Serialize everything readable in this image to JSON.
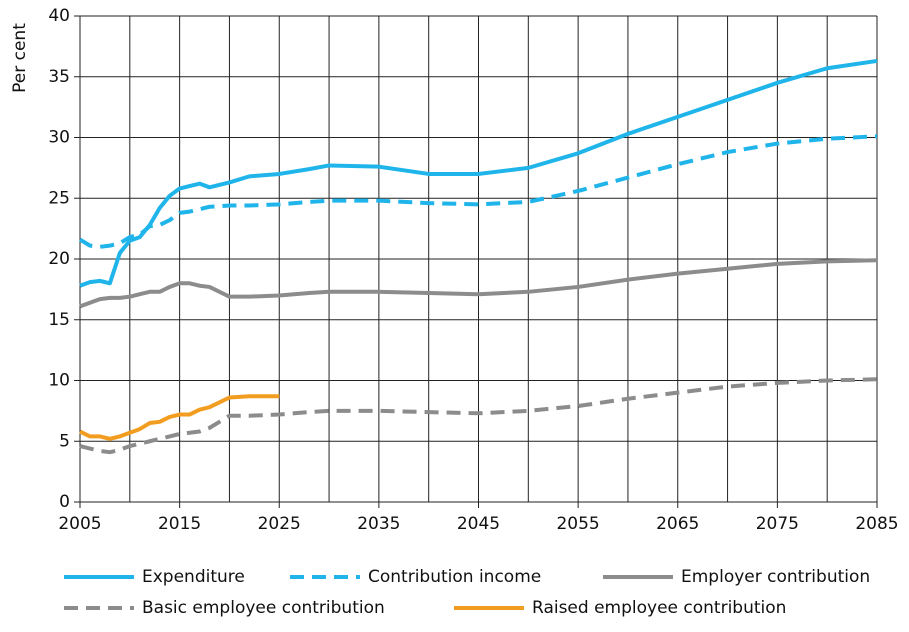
{
  "chart_data": {
    "type": "line",
    "y_label": "Per cent",
    "x": [
      2005,
      2006,
      2007,
      2008,
      2009,
      2010,
      2011,
      2012,
      2013,
      2014,
      2015,
      2016,
      2017,
      2018,
      2020,
      2022,
      2025,
      2028,
      2030,
      2035,
      2040,
      2045,
      2050,
      2055,
      2060,
      2065,
      2070,
      2075,
      2080,
      2085
    ],
    "series": [
      {
        "name": "Expenditure",
        "color": "#1fb5ea",
        "dashed": false,
        "values": [
          17.8,
          18.1,
          18.2,
          18.0,
          20.5,
          21.5,
          21.8,
          22.8,
          24.2,
          25.2,
          25.8,
          26.0,
          26.2,
          25.9,
          26.3,
          26.8,
          27.0,
          27.4,
          27.7,
          27.6,
          27.0,
          27.0,
          27.5,
          28.7,
          30.3,
          31.7,
          33.1,
          34.5,
          35.7,
          36.3
        ]
      },
      {
        "name": "Contribution income",
        "color": "#1fb5ea",
        "dashed": true,
        "values": [
          21.6,
          21.1,
          21.0,
          21.1,
          21.3,
          21.8,
          22.0,
          22.7,
          22.8,
          23.2,
          23.8,
          23.9,
          24.1,
          24.3,
          24.4,
          24.4,
          24.5,
          24.7,
          24.8,
          24.8,
          24.6,
          24.5,
          24.7,
          25.6,
          26.7,
          27.8,
          28.8,
          29.5,
          29.9,
          30.1
        ]
      },
      {
        "name": "Employer contribution",
        "color": "#8c8c8c",
        "dashed": false,
        "values": [
          16.1,
          16.4,
          16.7,
          16.8,
          16.8,
          16.9,
          17.1,
          17.3,
          17.3,
          17.7,
          18.0,
          18.0,
          17.8,
          17.7,
          16.9,
          16.9,
          17.0,
          17.2,
          17.3,
          17.3,
          17.2,
          17.1,
          17.3,
          17.7,
          18.3,
          18.8,
          19.2,
          19.6,
          19.8,
          19.9
        ]
      },
      {
        "name": "Basic employee contribution",
        "color": "#8c8c8c",
        "dashed": true,
        "values": [
          4.6,
          4.4,
          4.2,
          4.1,
          4.3,
          4.6,
          4.8,
          5.0,
          5.2,
          5.4,
          5.6,
          5.7,
          5.8,
          6.1,
          7.1,
          7.1,
          7.2,
          7.4,
          7.5,
          7.5,
          7.4,
          7.3,
          7.5,
          7.9,
          8.5,
          9.0,
          9.5,
          9.8,
          10.0,
          10.1
        ]
      },
      {
        "name": "Raised employee contribution",
        "color": "#f29d1f",
        "dashed": false,
        "values": [
          5.8,
          5.4,
          5.4,
          5.2,
          5.4,
          5.7,
          6.0,
          6.5,
          6.6,
          7.0,
          7.2,
          7.2,
          7.6,
          7.8,
          8.6,
          8.7,
          8.7,
          null,
          null,
          null,
          null,
          null,
          null,
          null,
          null,
          null,
          null,
          null,
          null,
          null
        ]
      }
    ],
    "xlim": [
      2005,
      2085
    ],
    "xticks": [
      2005,
      2015,
      2025,
      2035,
      2045,
      2055,
      2065,
      2075,
      2085
    ],
    "xminorticks": [
      2010,
      2020,
      2030,
      2040,
      2050,
      2060,
      2070,
      2080
    ],
    "ylim": [
      0,
      40
    ],
    "yticks": [
      0,
      5,
      10,
      15,
      20,
      25,
      30,
      35,
      40
    ],
    "grid": true,
    "legend": "bottom"
  }
}
